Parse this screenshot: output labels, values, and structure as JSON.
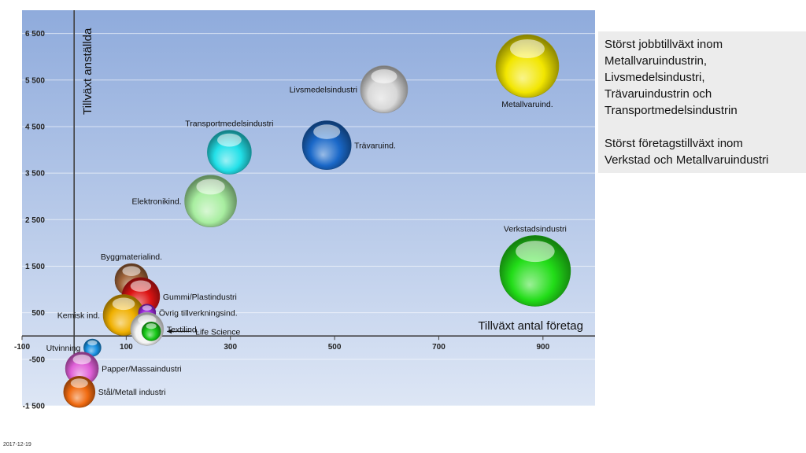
{
  "chart_data": {
    "type": "bubble",
    "title": "",
    "xlabel": "Tillväxt antal företag",
    "ylabel": "Tillväxt anställda",
    "xlim": [
      -100,
      1000
    ],
    "ylim": [
      -1500,
      7000
    ],
    "x_ticks": [
      -100,
      100,
      300,
      500,
      700,
      900
    ],
    "x_tick_labels": [
      "-100",
      "100",
      "300",
      "500",
      "700",
      "900"
    ],
    "y_ticks": [
      -1500,
      -500,
      500,
      1500,
      2500,
      3500,
      4500,
      5500,
      6500
    ],
    "y_tick_labels": [
      "-1 500",
      "-500",
      "500",
      "1 500",
      "2 500",
      "3 500",
      "4 500",
      "5 500",
      "6 500"
    ],
    "grid": true,
    "series": [
      {
        "name": "Metallvaruind.",
        "x": 870,
        "y": 5800,
        "size": 40,
        "color": "#f2e600",
        "label_pos": "below"
      },
      {
        "name": "Livsmedelsindustri",
        "x": 595,
        "y": 5300,
        "size": 30,
        "color": "#d8d8d8",
        "label_pos": "left"
      },
      {
        "name": "Trävaruind.",
        "x": 485,
        "y": 4100,
        "size": 31,
        "color": "#1a68c8",
        "label_pos": "right"
      },
      {
        "name": "Transportmedelsindustri",
        "x": 298,
        "y": 3950,
        "size": 28,
        "color": "#22e0e8",
        "label_pos": "above"
      },
      {
        "name": "Elektronikind.",
        "x": 262,
        "y": 2900,
        "size": 33,
        "color": "#a8eea0",
        "label_pos": "left"
      },
      {
        "name": "Verkstadsindustri",
        "x": 885,
        "y": 1400,
        "size": 45,
        "color": "#22dd18",
        "label_pos": "above"
      },
      {
        "name": "Byggmaterialind.",
        "x": 110,
        "y": 1200,
        "size": 21,
        "color": "#a0643a",
        "label_pos": "above"
      },
      {
        "name": "Gummi/Plastindustri",
        "x": 128,
        "y": 850,
        "size": 24,
        "color": "#dd1414",
        "label_pos": "right"
      },
      {
        "name": "Kemisk ind.",
        "x": 95,
        "y": 450,
        "size": 26,
        "color": "#f0b000",
        "label_pos": "left"
      },
      {
        "name": "Övrig tillverkningsind.",
        "x": 140,
        "y": 500,
        "size": 11,
        "color": "#9a28d8",
        "label_pos": "right"
      },
      {
        "name": "Textilind.",
        "x": 140,
        "y": 150,
        "size": 21,
        "color": "#f4f4f4",
        "label_pos": "right"
      },
      {
        "name": "Life Science",
        "x": 148,
        "y": 100,
        "size": 12,
        "color": "#18c818",
        "label_pos": "arrow"
      },
      {
        "name": "Utvinning",
        "x": 35,
        "y": -250,
        "size": 11,
        "color": "#1890e0",
        "label_pos": "left"
      },
      {
        "name": "Papper/Massaindustri",
        "x": 15,
        "y": -700,
        "size": 21,
        "color": "#e060d8",
        "label_pos": "right"
      },
      {
        "name": "Stål/Metall industri",
        "x": 10,
        "y": -1200,
        "size": 20,
        "color": "#f06a10",
        "label_pos": "right"
      }
    ]
  },
  "side_panel": {
    "text1": "Störst jobbtillväxt inom\nMetallvaruindustrin,\nLivsmedelsindustri,\nTrävaruindustrin  och\nTransportmedelsindustrin",
    "text2": "Störst företagstillväxt  inom\nVerkstad och Metallvaruindustri"
  },
  "footer": {
    "date": "2017-12-19"
  }
}
